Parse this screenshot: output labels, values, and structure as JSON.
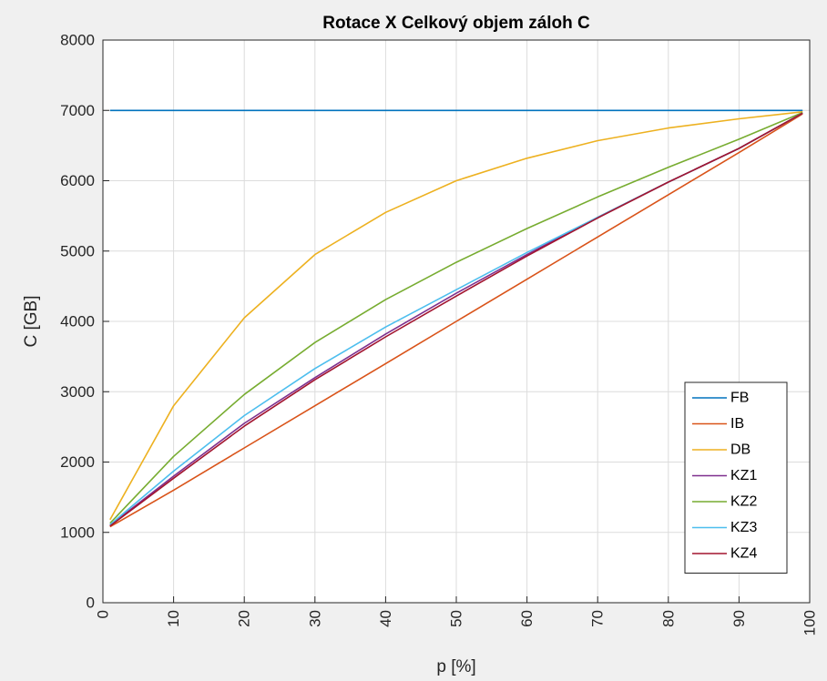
{
  "chart_data": {
    "type": "line",
    "title": "Rotace X Celkový objem záloh C",
    "xlabel": "p [%]",
    "ylabel": "C [GB]",
    "xlim": [
      0,
      100
    ],
    "ylim": [
      0,
      8000
    ],
    "xticks": [
      "0",
      "10",
      "20",
      "30",
      "40",
      "50",
      "60",
      "70",
      "80",
      "90",
      "100"
    ],
    "yticks": [
      "0",
      "1000",
      "2000",
      "3000",
      "4000",
      "5000",
      "6000",
      "7000",
      "8000"
    ],
    "grid": true,
    "legend_position": "bottom-right",
    "x": [
      1,
      10,
      20,
      30,
      40,
      50,
      60,
      70,
      80,
      90,
      99
    ],
    "series": [
      {
        "name": "FB",
        "color": "#0072bd",
        "values": [
          7000,
          7000,
          7000,
          7000,
          7000,
          7000,
          7000,
          7000,
          7000,
          7000,
          7000
        ]
      },
      {
        "name": "IB",
        "color": "#d95319",
        "values": [
          1080,
          1600,
          2200,
          2800,
          3400,
          4000,
          4600,
          5200,
          5800,
          6400,
          6950
        ]
      },
      {
        "name": "DB",
        "color": "#edb120",
        "values": [
          1180,
          2800,
          4050,
          4950,
          5550,
          6000,
          6320,
          6570,
          6750,
          6880,
          6980
        ]
      },
      {
        "name": "KZ1",
        "color": "#7e2f8e",
        "values": [
          1100,
          1800,
          2550,
          3200,
          3820,
          4400,
          4950,
          5480,
          5980,
          6460,
          6960
        ]
      },
      {
        "name": "KZ2",
        "color": "#77ac30",
        "values": [
          1130,
          2080,
          2960,
          3700,
          4310,
          4840,
          5320,
          5770,
          6190,
          6590,
          6970
        ]
      },
      {
        "name": "KZ3",
        "color": "#4dbeee",
        "values": [
          1110,
          1870,
          2660,
          3330,
          3920,
          4450,
          4980,
          5480,
          5980,
          6460,
          6960
        ]
      },
      {
        "name": "KZ4",
        "color": "#a2142f",
        "values": [
          1090,
          1770,
          2510,
          3170,
          3780,
          4360,
          4930,
          5470,
          5980,
          6460,
          6960
        ]
      }
    ]
  }
}
